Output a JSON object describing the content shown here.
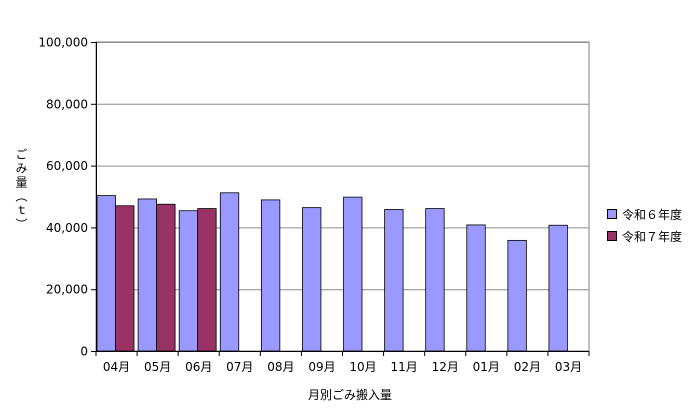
{
  "chart_data": {
    "type": "bar",
    "title": "",
    "xlabel": "月別ごみ搬入量",
    "ylabel": "ごみ量（ｔ）",
    "ylim": [
      0,
      100000
    ],
    "yticks": [
      "0",
      "20,000",
      "40,000",
      "60,000",
      "80,000",
      "100,000"
    ],
    "categories": [
      "04月",
      "05月",
      "06月",
      "07月",
      "08月",
      "09月",
      "10月",
      "11月",
      "12月",
      "01月",
      "02月",
      "03月"
    ],
    "series": [
      {
        "name": "令和６年度",
        "color": "#9999ff",
        "values": [
          50300,
          49200,
          45400,
          51200,
          48900,
          46400,
          49800,
          45800,
          46100,
          40800,
          35800,
          40700
        ]
      },
      {
        "name": "令和７年度",
        "color": "#993366",
        "values": [
          47000,
          47500,
          46100,
          null,
          null,
          null,
          null,
          null,
          null,
          null,
          null,
          null
        ]
      }
    ],
    "grid": true,
    "legend": "right"
  }
}
